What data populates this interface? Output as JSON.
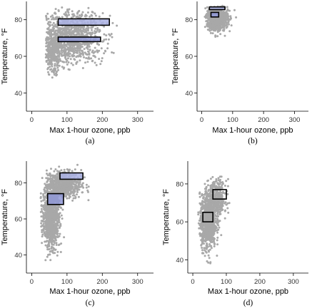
{
  "chart_data": [
    {
      "type": "scatter",
      "panel_label": "(a)",
      "xlabel": "Max 1-hour ozone, ppb",
      "ylabel": "Temperature, °F",
      "xlim": [
        -15,
        345
      ],
      "ylim": [
        30,
        90
      ],
      "xticks": [
        0,
        100,
        200,
        300
      ],
      "yticks": [
        40,
        60,
        80
      ],
      "scatter_clusters": [
        {
          "cx": 110,
          "cy": 70,
          "sx": 45,
          "sy": 7,
          "n": 1100,
          "xmin": 40,
          "xmax": 330,
          "ymin": 52,
          "ymax": 88
        },
        {
          "cx": 60,
          "cy": 62,
          "sx": 12,
          "sy": 6,
          "n": 300,
          "xmin": 40,
          "xmax": 100,
          "ymin": 48,
          "ymax": 75
        }
      ],
      "regions": [
        {
          "x0": 75,
          "x1": 220,
          "y0": 77,
          "y1": 80.5,
          "fill": "#aab2e4"
        },
        {
          "x0": 75,
          "x1": 195,
          "y0": 68,
          "y1": 70.5,
          "fill": "#8f98d6"
        }
      ]
    },
    {
      "type": "scatter",
      "panel_label": "(b)",
      "xlabel": "Max 1-hour ozone, ppb",
      "ylabel": "Temperature, °F",
      "xlim": [
        -15,
        345
      ],
      "ylim": [
        30,
        90
      ],
      "xticks": [
        0,
        100,
        200,
        300
      ],
      "yticks": [
        40,
        60,
        80
      ],
      "scatter_clusters": [
        {
          "cx": 50,
          "cy": 81,
          "sx": 17,
          "sy": 3.5,
          "n": 800,
          "xmin": 10,
          "xmax": 130,
          "ymin": 66,
          "ymax": 88
        }
      ],
      "regions": [
        {
          "x0": 25,
          "x1": 75,
          "y0": 85.5,
          "y1": 87,
          "fill": "#aab2e4"
        },
        {
          "x0": 30,
          "x1": 55,
          "y0": 81.5,
          "y1": 84,
          "fill": "#8f98d6"
        }
      ]
    },
    {
      "type": "scatter",
      "panel_label": "(c)",
      "xlabel": "Max 1-hour ozone, ppb",
      "ylabel": "Temperature, °F",
      "xlim": [
        -15,
        345
      ],
      "ylim": [
        30,
        92
      ],
      "xticks": [
        0,
        100,
        200,
        300
      ],
      "yticks": [
        40,
        60,
        80
      ],
      "scatter_clusters": [
        {
          "cx": 55,
          "cy": 62,
          "sx": 12,
          "sy": 9,
          "n": 1000,
          "xmin": 25,
          "xmax": 140,
          "ymin": 32,
          "ymax": 90
        },
        {
          "cx": 90,
          "cy": 79,
          "sx": 25,
          "sy": 4,
          "n": 600,
          "xmin": 40,
          "xmax": 300,
          "ymin": 70,
          "ymax": 91
        }
      ],
      "regions": [
        {
          "x0": 80,
          "x1": 145,
          "y0": 82,
          "y1": 85.5,
          "fill": "#aab2e4"
        },
        {
          "x0": 45,
          "x1": 90,
          "y0": 68,
          "y1": 74,
          "fill": "#8f98d6"
        }
      ]
    },
    {
      "type": "scatter",
      "panel_label": "(d)",
      "xlabel": "Max 1-hour ozone, ppb",
      "ylabel": "Temperature, °F",
      "xlim": [
        -15,
        345
      ],
      "ylim": [
        33,
        92
      ],
      "xticks": [
        0,
        100,
        200,
        300
      ],
      "yticks": [
        40,
        60,
        80
      ],
      "scatter_clusters": [
        {
          "cx": 45,
          "cy": 60,
          "sx": 12,
          "sy": 7,
          "n": 900,
          "xmin": 15,
          "xmax": 110,
          "ymin": 38,
          "ymax": 82
        },
        {
          "cx": 70,
          "cy": 72,
          "sx": 15,
          "sy": 5,
          "n": 400,
          "xmin": 35,
          "xmax": 110,
          "ymin": 60,
          "ymax": 84
        }
      ],
      "regions": [
        {
          "x0": 60,
          "x1": 100,
          "y0": 72,
          "y1": 77,
          "fill": "none"
        },
        {
          "x0": 30,
          "x1": 60,
          "y0": 60,
          "y1": 65,
          "fill": "none"
        }
      ]
    }
  ]
}
